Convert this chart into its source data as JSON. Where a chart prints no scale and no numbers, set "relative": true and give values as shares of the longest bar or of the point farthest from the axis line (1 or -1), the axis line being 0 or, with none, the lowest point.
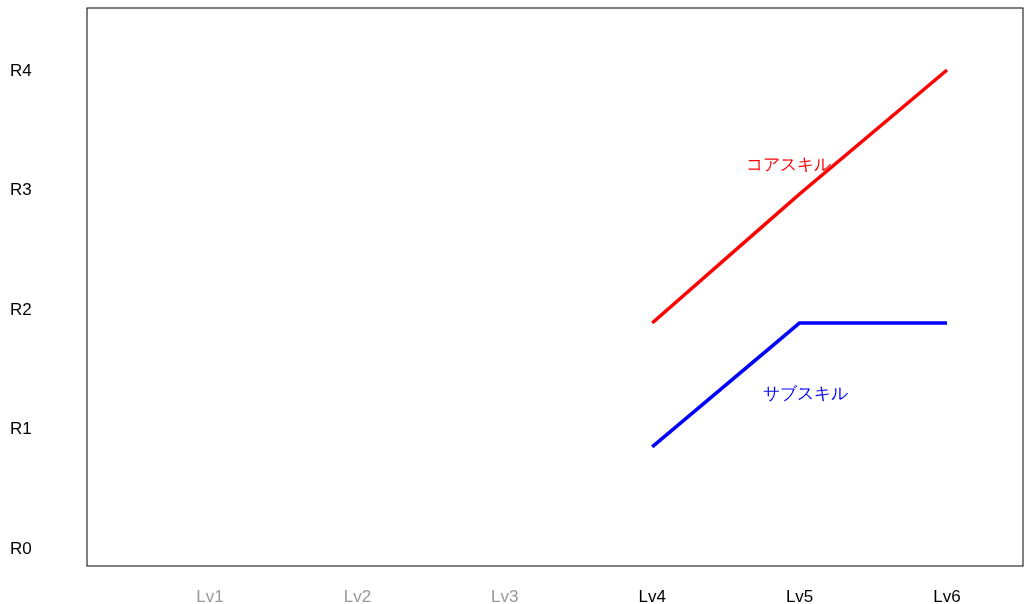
{
  "chart_data": {
    "type": "line",
    "relative": true,
    "categories": [
      "Lv1",
      "Lv2",
      "Lv3",
      "Lv4",
      "Lv5",
      "Lv6"
    ],
    "series": [
      {
        "name": "コアスキル",
        "color": "#ff0000",
        "values": [
          null,
          null,
          null,
          0.49,
          0.75,
          1
        ]
      },
      {
        "name": "サブスキル",
        "color": "#0000ff",
        "values": [
          null,
          null,
          null,
          0.24,
          0.49,
          0.49
        ]
      }
    ],
    "annotations": [
      "R0",
      "R1",
      "R2",
      "R3",
      "R4"
    ],
    "grid": false,
    "legend": false,
    "marker": "none",
    "line_style": "solid"
  }
}
